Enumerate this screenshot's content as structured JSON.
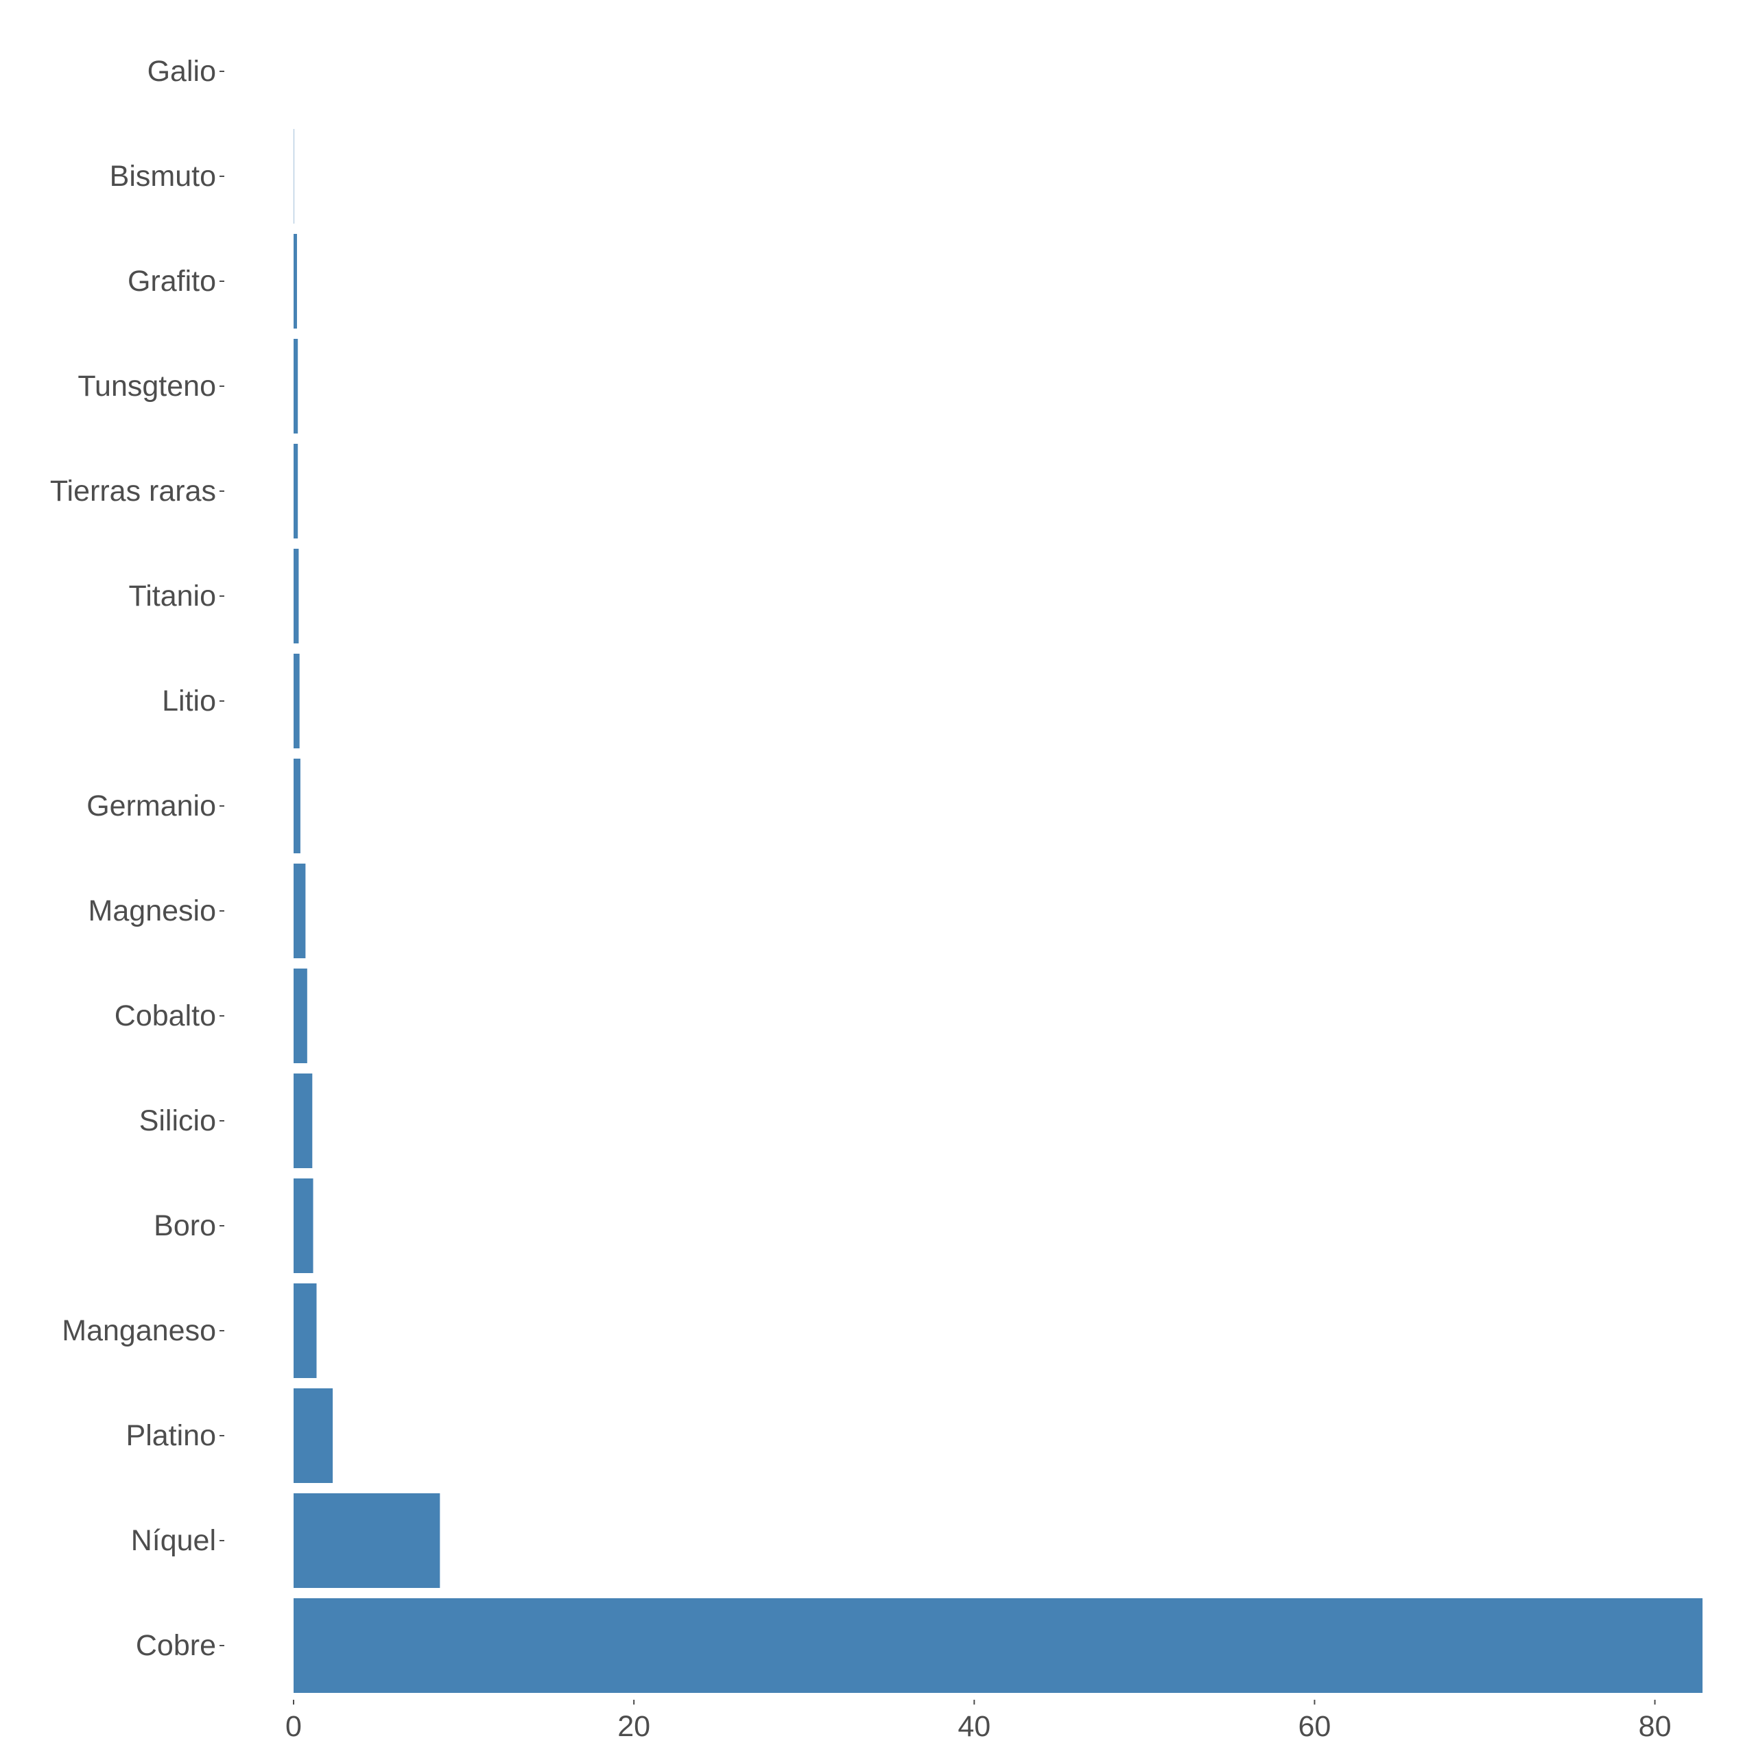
{
  "chart_data": {
    "type": "bar",
    "orientation": "horizontal",
    "categories": [
      "Galio",
      "Bismuto",
      "Grafito",
      "Tunsgteno",
      "Tierras raras",
      "Titanio",
      "Litio",
      "Germanio",
      "Magnesio",
      "Cobalto",
      "Silicio",
      "Boro",
      "Manganeso",
      "Platino",
      "Níquel",
      "Cobre"
    ],
    "values": [
      0.0,
      0.02,
      0.2,
      0.25,
      0.25,
      0.3,
      0.35,
      0.4,
      0.7,
      0.8,
      1.1,
      1.15,
      1.35,
      2.3,
      8.6,
      82.8
    ],
    "xlim": [
      0,
      83
    ],
    "xticks": [
      0,
      20,
      40,
      60,
      80
    ],
    "title": "",
    "xlabel": "",
    "ylabel": "",
    "grid": false,
    "legend": "none",
    "bar_color": "#4682b4"
  }
}
